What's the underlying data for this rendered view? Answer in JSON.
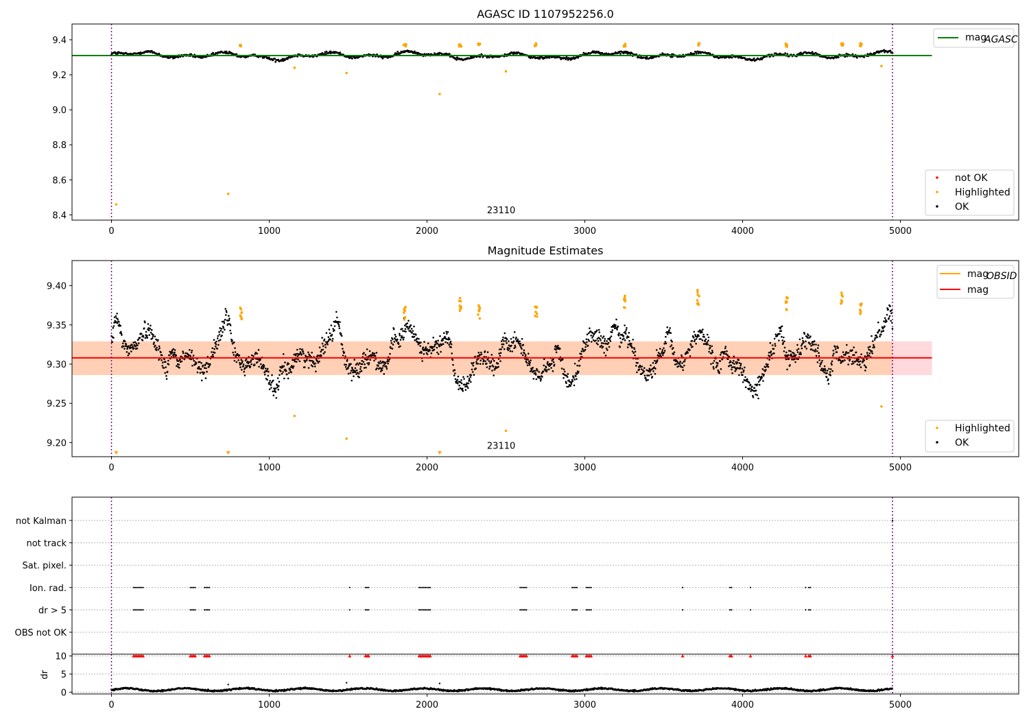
{
  "chart_data": [
    {
      "type": "scatter",
      "title": "AGASC ID 1107952256.0",
      "xlim": [
        -250,
        5750
      ],
      "ylim": [
        8.37,
        9.49
      ],
      "xticks": [
        0,
        1000,
        2000,
        3000,
        4000,
        5000
      ],
      "yticks": [
        8.4,
        8.6,
        8.8,
        9.0,
        9.2,
        9.4
      ],
      "ytick_labels": [
        "8.4",
        "8.6",
        "8.8",
        "9.0",
        "9.2",
        "9.4"
      ],
      "vlines": [
        0,
        4950
      ],
      "annotation": {
        "text": "23110",
        "x": 2470,
        "y": 8.41
      },
      "mag_agasc": {
        "value": 9.31,
        "x": [
          -250,
          5200
        ]
      },
      "base_mag": 9.31,
      "highlighted": [
        [
          30,
          8.46
        ],
        [
          740,
          8.52
        ],
        [
          1160,
          9.24
        ],
        [
          1490,
          9.21
        ],
        [
          2080,
          9.09
        ],
        [
          2500,
          9.22
        ],
        [
          4880,
          9.25
        ]
      ],
      "legend_lines": [
        {
          "label": "mag",
          "sub": "AGASC",
          "color": "#008000"
        }
      ],
      "legend_points": [
        {
          "label": "not OK",
          "color": "#ff0000"
        },
        {
          "label": "Highlighted",
          "color": "#ffa500"
        },
        {
          "label": "OK",
          "color": "#000000"
        }
      ],
      "grid": false
    },
    {
      "type": "scatter",
      "title": "Magnitude Estimates",
      "xlim": [
        -250,
        5750
      ],
      "ylim": [
        9.182,
        9.432
      ],
      "xticks": [
        0,
        1000,
        2000,
        3000,
        4000,
        5000
      ],
      "yticks": [
        9.2,
        9.25,
        9.3,
        9.35,
        9.4
      ],
      "ytick_labels": [
        "9.20",
        "9.25",
        "9.30",
        "9.35",
        "9.40"
      ],
      "vlines": [
        0,
        4950
      ],
      "annotation": {
        "text": "23110",
        "x": 2470,
        "y": 9.192
      },
      "mag": {
        "value": 9.308,
        "x": [
          -250,
          5200
        ]
      },
      "band_outer": [
        9.286,
        9.329
      ],
      "band_inner": [
        9.286,
        9.329
      ],
      "band_inner_end": 4950,
      "base_mag": 9.308,
      "highlighted": [
        [
          1160,
          9.234
        ],
        [
          1490,
          9.205
        ],
        [
          2500,
          9.215
        ],
        [
          4880,
          9.246
        ]
      ],
      "highlight_clusters": [
        [
          1860,
          9.366
        ],
        [
          2210,
          9.375
        ],
        [
          2330,
          9.365
        ],
        [
          2690,
          9.37
        ],
        [
          3250,
          9.378
        ],
        [
          3720,
          9.385
        ],
        [
          4280,
          9.378
        ],
        [
          4630,
          9.382
        ],
        [
          4750,
          9.372
        ],
        [
          820,
          9.365
        ]
      ],
      "lower_markers": [
        30,
        740,
        2080
      ],
      "legend_lines": [
        {
          "label": "mag",
          "sub": "OBSID",
          "color": "#ffa500"
        },
        {
          "label": "mag",
          "sub": "",
          "color": "#ff0000"
        }
      ],
      "legend_points": [
        {
          "label": "Highlighted",
          "color": "#ffa500"
        },
        {
          "label": "OK",
          "color": "#000000"
        }
      ],
      "grid": false
    },
    {
      "type": "scatter",
      "xlim": [
        -250,
        5750
      ],
      "xticks": [
        0,
        1000,
        2000,
        3000,
        4000,
        5000
      ],
      "categories": [
        "not Kalman",
        "not track",
        "Sat. pixel.",
        "Ion. rad.",
        "dr > 5",
        "OBS not OK"
      ],
      "flag_x": [
        140,
        150,
        160,
        170,
        180,
        190,
        200,
        500,
        510,
        520,
        530,
        590,
        600,
        610,
        620,
        1510,
        1610,
        1620,
        1630,
        1950,
        1960,
        1970,
        1980,
        1990,
        2000,
        2010,
        2020,
        2590,
        2600,
        2610,
        2620,
        2630,
        2920,
        2930,
        2940,
        2950,
        3010,
        3020,
        3030,
        3040,
        3620,
        3920,
        3930,
        4050,
        4400,
        4420,
        4430
      ],
      "vlines": [
        0,
        4950
      ],
      "grid": true
    },
    {
      "type": "scatter",
      "ylabel": "dr",
      "xlim": [
        -250,
        5750
      ],
      "ylim": [
        -0.5,
        10.5
      ],
      "xticks": [
        0,
        1000,
        2000,
        3000,
        4000,
        5000
      ],
      "yticks": [
        0,
        5,
        10
      ],
      "ytick_labels": [
        "0",
        "5",
        "10"
      ],
      "vlines": [
        0,
        4950
      ],
      "outliers": [
        [
          740,
          2.1
        ],
        [
          1490,
          2.6
        ],
        [
          2080,
          2.4
        ]
      ],
      "grid": true
    }
  ]
}
